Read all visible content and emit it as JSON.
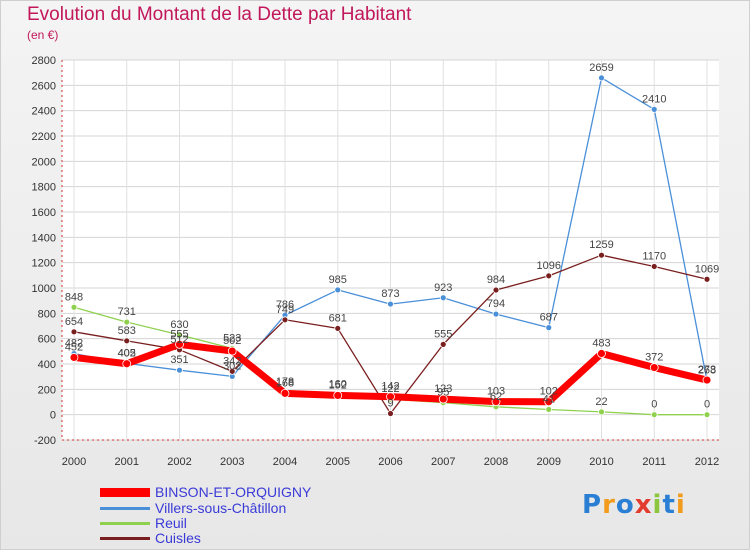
{
  "title": "Evolution du Montant de la Dette par Habitant",
  "subtitle": "(en €)",
  "logo_text": "Proxiti",
  "chart_data": {
    "type": "line",
    "x": [
      "2000",
      "2001",
      "2002",
      "2003",
      "2004",
      "2005",
      "2006",
      "2007",
      "2008",
      "2009",
      "2010",
      "2011",
      "2012"
    ],
    "ylim": [
      -200,
      2800
    ],
    "yticks": [
      -200,
      0,
      200,
      400,
      600,
      800,
      1000,
      1200,
      1400,
      1600,
      1800,
      2000,
      2200,
      2400,
      2600,
      2800
    ],
    "grid": true,
    "legend_position": "bottom-left",
    "series": [
      {
        "name": "BINSON-ET-ORQUIGNY",
        "color": "#ff0000",
        "values": [
          452,
          402,
          555,
          502,
          168,
          152,
          142,
          123,
          103,
          102,
          483,
          372,
          273
        ]
      },
      {
        "name": "Villers-sous-Châtillon",
        "color": "#4a90d9",
        "values": [
          482,
          405,
          351,
          302,
          786,
          985,
          873,
          923,
          794,
          687,
          2659,
          2410,
          268
        ]
      },
      {
        "name": "Reuil",
        "color": "#8fd14f",
        "values": [
          848,
          731,
          630,
          523,
          178,
          160,
          122,
          95,
          62,
          41,
          22,
          0,
          0
        ]
      },
      {
        "name": "Cuisles",
        "color": "#7a1f1f",
        "values": [
          654,
          583,
          512,
          342,
          749,
          681,
          9,
          555,
          984,
          1096,
          1259,
          1170,
          1069
        ]
      }
    ]
  }
}
